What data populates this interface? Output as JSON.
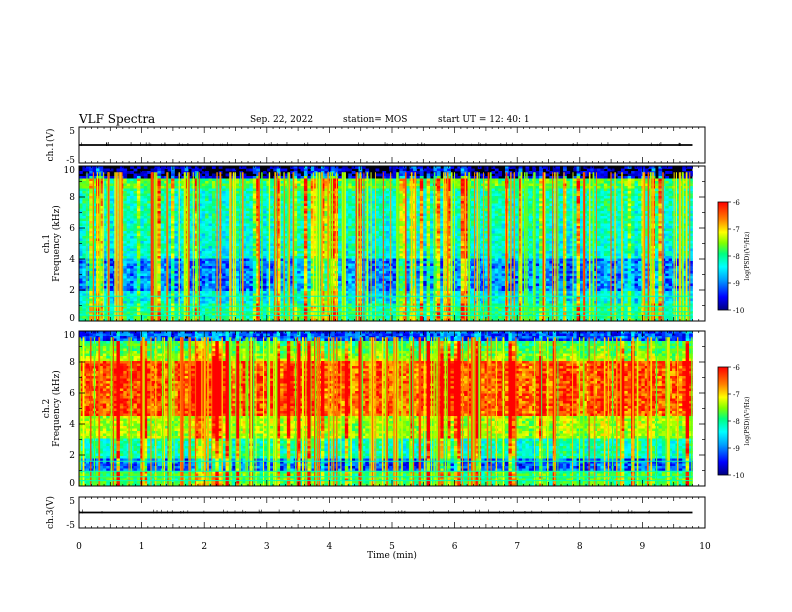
{
  "header": {
    "title": "VLF Spectra",
    "date": "Sep. 22, 2022",
    "station": "station= MOS",
    "start": "start  UT  =   12: 40: 1"
  },
  "chart_data": [
    {
      "type": "line",
      "name": "ch1-voltage",
      "ylabel": "ch.1(V)",
      "ylim": [
        -5,
        5
      ],
      "yticks": [
        "5",
        "-5"
      ],
      "xlim": [
        0,
        10
      ],
      "level": 0
    },
    {
      "type": "heatmap",
      "name": "ch1-spectrogram",
      "ylabel": "ch.1 Frequency (kHz)",
      "ylim": [
        0,
        10
      ],
      "yticks": [
        "0",
        "2",
        "4",
        "6",
        "8",
        "10"
      ],
      "xlim": [
        0,
        10
      ],
      "data_end_min": 9.8,
      "colorbar": {
        "label": "log(PSD)(V²/Hz)",
        "range": [
          -10,
          -6
        ],
        "ticks": [
          "-6",
          "-7",
          "-8",
          "-9",
          "-10"
        ]
      }
    },
    {
      "type": "heatmap",
      "name": "ch2-spectrogram",
      "ylabel": "ch.2 Frequency (kHz)",
      "ylim": [
        0,
        10
      ],
      "yticks": [
        "0",
        "2",
        "4",
        "6",
        "8",
        "10"
      ],
      "xlim": [
        0,
        10
      ],
      "data_end_min": 9.8,
      "colorbar": {
        "label": "log(PSD)(V²/Hz)",
        "range": [
          -10,
          -6
        ],
        "ticks": [
          "-6",
          "-7",
          "-8",
          "-9",
          "-10"
        ]
      }
    },
    {
      "type": "line",
      "name": "ch3-voltage",
      "ylabel": "ch.3(V)",
      "ylim": [
        -5,
        5
      ],
      "yticks": [
        "5",
        "-5"
      ],
      "xlim": [
        0,
        10
      ],
      "level": 0,
      "xlabel": "Time  (min)",
      "xticks": [
        "0",
        "1",
        "2",
        "3",
        "4",
        "5",
        "6",
        "7",
        "8",
        "9",
        "10"
      ]
    }
  ],
  "colors": {
    "colormap": [
      "#000080",
      "#0000ff",
      "#00a0ff",
      "#00ffff",
      "#00ff80",
      "#80ff00",
      "#ffff00",
      "#ff8000",
      "#ff0000"
    ],
    "frame": "#000000"
  }
}
